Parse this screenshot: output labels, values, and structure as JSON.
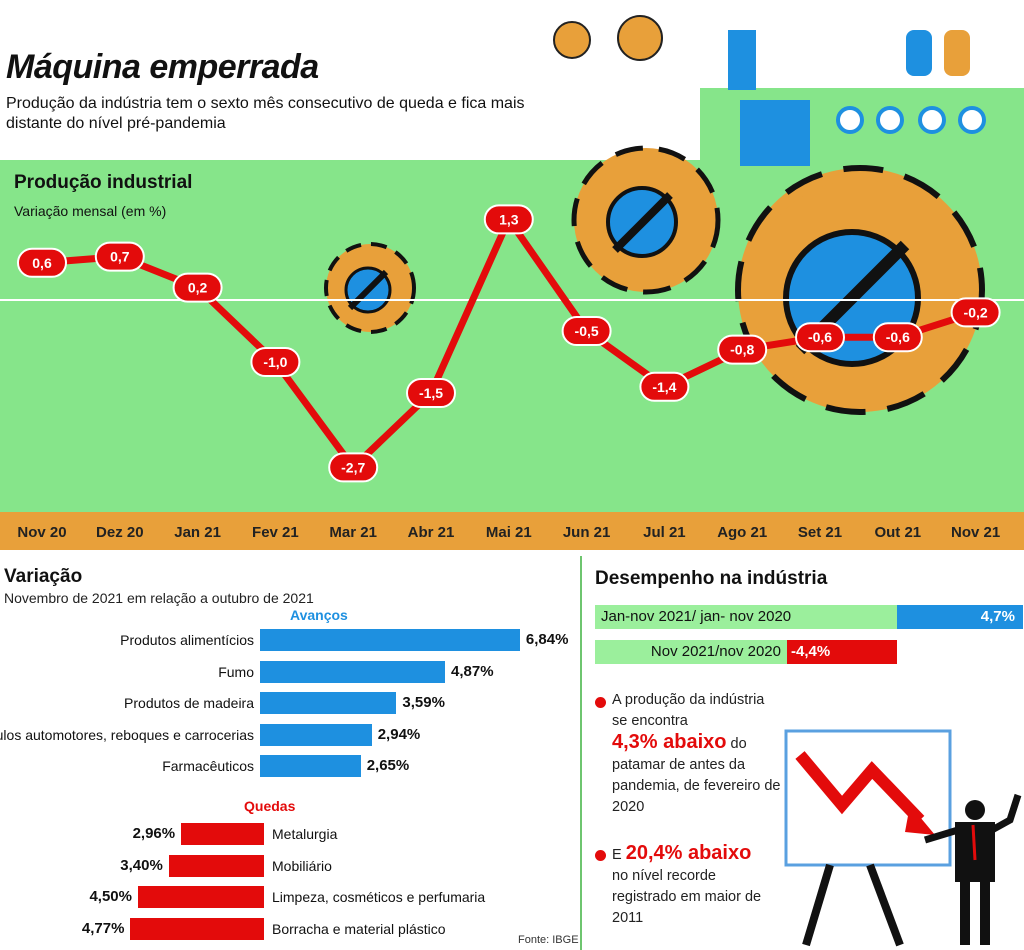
{
  "header": {
    "title": "Máquina emperrada",
    "subtitle": "Produção da indústria tem o sexto mês consecutivo de queda e fica mais distante do nível pré-pandemia"
  },
  "chart_data": [
    {
      "type": "line",
      "title": "Produção industrial",
      "ylabel": "Variação mensal (em %)",
      "categories": [
        "Nov 20",
        "Dez 20",
        "Jan 21",
        "Fev 21",
        "Mar 21",
        "Abr 21",
        "Mai 21",
        "Jun 21",
        "Jul 21",
        "Ago 21",
        "Set 21",
        "Out 21",
        "Nov 21"
      ],
      "values": [
        0.6,
        0.7,
        0.2,
        -1.0,
        -2.7,
        -1.5,
        1.3,
        -0.5,
        -1.4,
        -0.8,
        -0.6,
        -0.6,
        -0.2
      ],
      "labels": [
        "0,6",
        "0,7",
        "0,2",
        "-1,0",
        "-2,7",
        "-1,5",
        "1,3",
        "-0,5",
        "-1,4",
        "-0,8",
        "-0,6",
        "-0,6",
        "-0,2"
      ],
      "ylim": [
        -3,
        1.8
      ],
      "color": "#e30b0b"
    },
    {
      "type": "bar",
      "title": "Variação",
      "subtitle": "Novembro de 2021 em relação a outubro de 2021",
      "groups": [
        {
          "name": "Avanços",
          "color": "#1e90e0",
          "categories": [
            "Produtos alimentícios",
            "Fumo",
            "Produtos de madeira",
            "Veículos automotores, reboques e carrocerias",
            "Farmacêuticos"
          ],
          "values": [
            6.84,
            4.87,
            3.59,
            2.94,
            2.65
          ],
          "labels": [
            "6,84%",
            "4,87%",
            "3,59%",
            "2,94%",
            "2,65%"
          ]
        },
        {
          "name": "Quedas",
          "color": "#e30b0b",
          "categories": [
            "Metalurgia",
            "Mobiliário",
            "Limpeza, cosméticos e perfumaria",
            "Borracha e material plástico"
          ],
          "values": [
            2.96,
            3.4,
            4.5,
            4.77
          ],
          "labels": [
            "2,96%",
            "3,40%",
            "4,50%",
            "4,77%"
          ]
        }
      ]
    },
    {
      "type": "bar",
      "title": "Desempenho na indústria",
      "categories": [
        "Jan-nov 2021/ jan- nov 2020",
        "Nov 2021/nov 2020"
      ],
      "values": [
        4.7,
        -4.4
      ],
      "labels": [
        "4,7%",
        "-4,4%"
      ]
    }
  ],
  "notes": {
    "n1_pre": "A produção da indústria se encontra",
    "n1_big": "4,3% abaixo",
    "n1_post": "do patamar de antes da pandemia, de fevereiro de 2020",
    "n2_pre": "E",
    "n2_big": "20,4% abaixo",
    "n2_post": "no nível recorde registrado em maior de 2011"
  },
  "source": "Fonte: IBGE"
}
